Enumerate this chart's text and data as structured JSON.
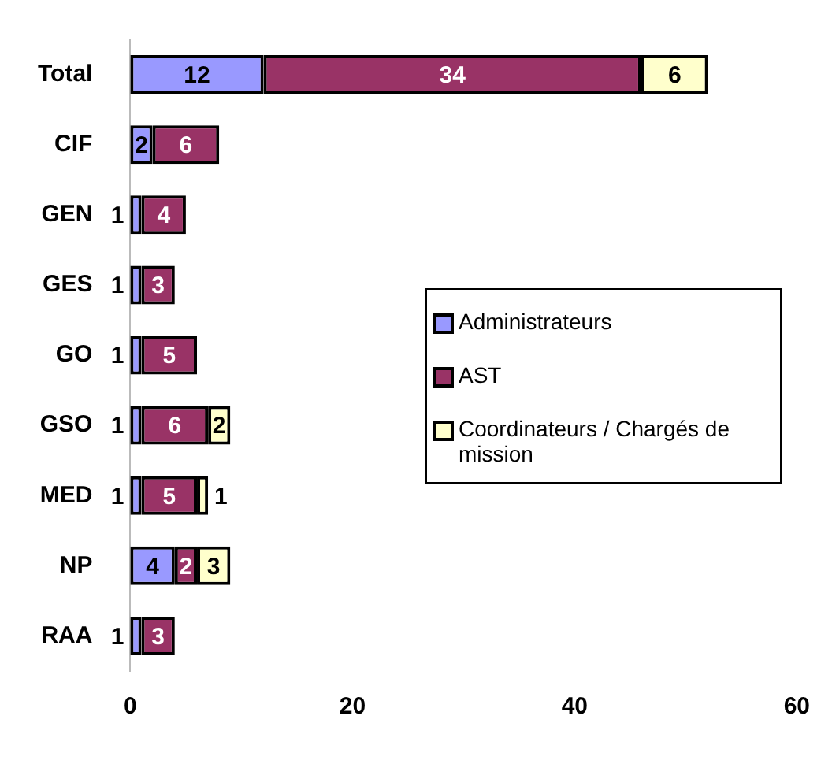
{
  "chart_data": {
    "type": "bar",
    "orientation": "horizontal",
    "stacked": true,
    "categories": [
      "Total",
      "CIF",
      "GEN",
      "GES",
      "GO",
      "GSO",
      "MED",
      "NP",
      "RAA"
    ],
    "series": [
      {
        "name": "Administrateurs",
        "color": "#9999ff",
        "values": [
          12,
          2,
          1,
          1,
          1,
          1,
          1,
          4,
          1
        ]
      },
      {
        "name": "AST",
        "color": "#993366",
        "values": [
          34,
          6,
          4,
          3,
          5,
          6,
          5,
          2,
          3
        ]
      },
      {
        "name": "Coordinateurs / Chargés de mission",
        "color": "#ffffcc",
        "values": [
          6,
          null,
          null,
          null,
          null,
          2,
          1,
          3,
          null
        ]
      }
    ],
    "xlim": [
      0,
      60
    ],
    "xticks": [
      0,
      20,
      40,
      60
    ],
    "grid": false,
    "legend": "right",
    "data_labels": true
  }
}
